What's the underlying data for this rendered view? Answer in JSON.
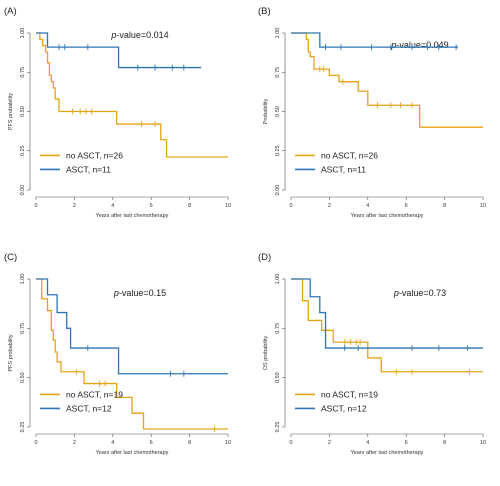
{
  "colors": {
    "no_asct": "#E8A317",
    "asct": "#2E75B6"
  },
  "chart_data": [
    {
      "type": "line",
      "panel": "(A)",
      "p_prefix": "p",
      "p_value": "-value=0.014",
      "xlabel": "Years after last chemotherapy",
      "ylabel": "PFS probability",
      "xlim": [
        0,
        10
      ],
      "ylim": [
        0,
        1
      ],
      "x_ticks": [
        "0",
        "2",
        "4",
        "6",
        "8",
        "10"
      ],
      "y_ticks": [
        "0.00",
        "0.25",
        "0.50",
        "0.75",
        "1.00"
      ],
      "legend_position": "bottom-left",
      "series": [
        {
          "name": "no ASCT, n=26",
          "color": "#E8A317",
          "steps": [
            [
              0,
              1
            ],
            [
              0.2,
              0.96
            ],
            [
              0.35,
              0.92
            ],
            [
              0.5,
              0.88
            ],
            [
              0.6,
              0.81
            ],
            [
              0.7,
              0.73
            ],
            [
              0.8,
              0.69
            ],
            [
              0.9,
              0.65
            ],
            [
              1.0,
              0.58
            ],
            [
              1.2,
              0.5
            ],
            [
              4.2,
              0.42
            ],
            [
              6.5,
              0.32
            ],
            [
              6.8,
              0.21
            ],
            [
              10,
              0.21
            ]
          ],
          "censored": [
            [
              1.9,
              0.5
            ],
            [
              2.3,
              0.5
            ],
            [
              2.6,
              0.5
            ],
            [
              2.9,
              0.5
            ],
            [
              5.5,
              0.42
            ],
            [
              6.2,
              0.42
            ]
          ]
        },
        {
          "name": "ASCT, n=11",
          "color": "#2E75B6",
          "steps": [
            [
              0,
              1
            ],
            [
              0.6,
              0.91
            ],
            [
              4.3,
              0.78
            ],
            [
              8.6,
              0.78
            ]
          ],
          "censored": [
            [
              1.2,
              0.91
            ],
            [
              1.5,
              0.91
            ],
            [
              2.7,
              0.91
            ],
            [
              5.3,
              0.78
            ],
            [
              6.2,
              0.78
            ],
            [
              7.1,
              0.78
            ],
            [
              7.7,
              0.78
            ]
          ]
        }
      ]
    },
    {
      "type": "line",
      "panel": "(B)",
      "p_prefix": "p",
      "p_value": "-value=0.049",
      "xlabel": "Years after last chemotherapy",
      "ylabel": "Probability",
      "xlim": [
        0,
        10
      ],
      "ylim": [
        0,
        1
      ],
      "x_ticks": [
        "0",
        "2",
        "4",
        "6",
        "8",
        "10"
      ],
      "y_ticks": [
        "0.00",
        "0.25",
        "0.50",
        "0.75",
        "1.00"
      ],
      "legend_position": "bottom-left",
      "series": [
        {
          "name": "no ASCT, n=26",
          "color": "#E8A317",
          "steps": [
            [
              0,
              1
            ],
            [
              0.8,
              0.96
            ],
            [
              0.9,
              0.88
            ],
            [
              1.0,
              0.85
            ],
            [
              1.2,
              0.77
            ],
            [
              2.0,
              0.73
            ],
            [
              2.5,
              0.69
            ],
            [
              3.5,
              0.63
            ],
            [
              4.0,
              0.54
            ],
            [
              6.7,
              0.4
            ],
            [
              10,
              0.4
            ]
          ],
          "censored": [
            [
              1.5,
              0.77
            ],
            [
              1.7,
              0.77
            ],
            [
              2.7,
              0.69
            ],
            [
              4.5,
              0.54
            ],
            [
              5.2,
              0.54
            ],
            [
              5.7,
              0.54
            ],
            [
              6.3,
              0.54
            ]
          ]
        },
        {
          "name": "ASCT, n=11",
          "color": "#2E75B6",
          "steps": [
            [
              0,
              1
            ],
            [
              1.5,
              0.91
            ],
            [
              8.7,
              0.91
            ]
          ],
          "censored": [
            [
              1.8,
              0.91
            ],
            [
              2.6,
              0.91
            ],
            [
              4.2,
              0.91
            ],
            [
              5.2,
              0.91
            ],
            [
              6.3,
              0.91
            ],
            [
              7.1,
              0.91
            ],
            [
              7.7,
              0.91
            ],
            [
              8.6,
              0.91
            ]
          ]
        }
      ]
    },
    {
      "type": "line",
      "panel": "(C)",
      "p_prefix": "p",
      "p_value": "-value=0.15",
      "xlabel": "Years after last chemotherapy",
      "ylabel": "PFS probability",
      "xlim": [
        0,
        10
      ],
      "ylim": [
        0.25,
        1
      ],
      "x_ticks": [
        "0",
        "2",
        "4",
        "6",
        "8",
        "10"
      ],
      "y_ticks": [
        "0.25",
        "0.50",
        "0.75",
        "1.00"
      ],
      "legend_position": "bottom-left",
      "series": [
        {
          "name": "no ASCT, n=19",
          "color": "#E8A317",
          "steps": [
            [
              0,
              1
            ],
            [
              0.3,
              0.9
            ],
            [
              0.6,
              0.84
            ],
            [
              0.8,
              0.74
            ],
            [
              0.9,
              0.69
            ],
            [
              1.0,
              0.63
            ],
            [
              1.1,
              0.58
            ],
            [
              1.3,
              0.53
            ],
            [
              2.5,
              0.47
            ],
            [
              4.2,
              0.4
            ],
            [
              5.0,
              0.32
            ],
            [
              5.6,
              0.24
            ],
            [
              10,
              0.24
            ]
          ],
          "censored": [
            [
              2.1,
              0.53
            ],
            [
              3.3,
              0.47
            ],
            [
              3.6,
              0.47
            ],
            [
              9.3,
              0.24
            ]
          ]
        },
        {
          "name": "ASCT, n=12",
          "color": "#2E75B6",
          "steps": [
            [
              0,
              1
            ],
            [
              0.6,
              0.92
            ],
            [
              1.1,
              0.83
            ],
            [
              1.6,
              0.75
            ],
            [
              1.8,
              0.65
            ],
            [
              4.3,
              0.52
            ],
            [
              10,
              0.52
            ]
          ],
          "censored": [
            [
              2.7,
              0.65
            ],
            [
              7.0,
              0.52
            ],
            [
              7.7,
              0.52
            ]
          ]
        }
      ]
    },
    {
      "type": "line",
      "panel": "(D)",
      "p_prefix": "p",
      "p_value": "-value=0.73",
      "xlabel": "Years after last chemotherapy",
      "ylabel": "OS probability",
      "xlim": [
        0,
        10
      ],
      "ylim": [
        0.25,
        1
      ],
      "x_ticks": [
        "0",
        "2",
        "4",
        "6",
        "8",
        "10"
      ],
      "y_ticks": [
        "0.25",
        "0.50",
        "0.75",
        "1.00"
      ],
      "legend_position": "bottom-left",
      "series": [
        {
          "name": "no ASCT, n=19",
          "color": "#E8A317",
          "steps": [
            [
              0,
              1
            ],
            [
              0.6,
              0.89
            ],
            [
              0.9,
              0.79
            ],
            [
              1.6,
              0.74
            ],
            [
              2.2,
              0.68
            ],
            [
              4.0,
              0.6
            ],
            [
              4.7,
              0.53
            ],
            [
              10,
              0.53
            ]
          ],
          "censored": [
            [
              2.8,
              0.68
            ],
            [
              3.1,
              0.68
            ],
            [
              3.4,
              0.68
            ],
            [
              3.6,
              0.68
            ],
            [
              5.5,
              0.53
            ],
            [
              6.3,
              0.53
            ],
            [
              9.3,
              0.53
            ]
          ]
        },
        {
          "name": "ASCT, n=12",
          "color": "#2E75B6",
          "steps": [
            [
              0,
              1
            ],
            [
              1.0,
              0.91
            ],
            [
              1.5,
              0.83
            ],
            [
              1.8,
              0.65
            ],
            [
              10,
              0.65
            ]
          ],
          "censored": [
            [
              2.8,
              0.65
            ],
            [
              3.5,
              0.65
            ],
            [
              6.3,
              0.65
            ],
            [
              7.7,
              0.65
            ],
            [
              9.2,
              0.65
            ]
          ]
        }
      ]
    }
  ]
}
